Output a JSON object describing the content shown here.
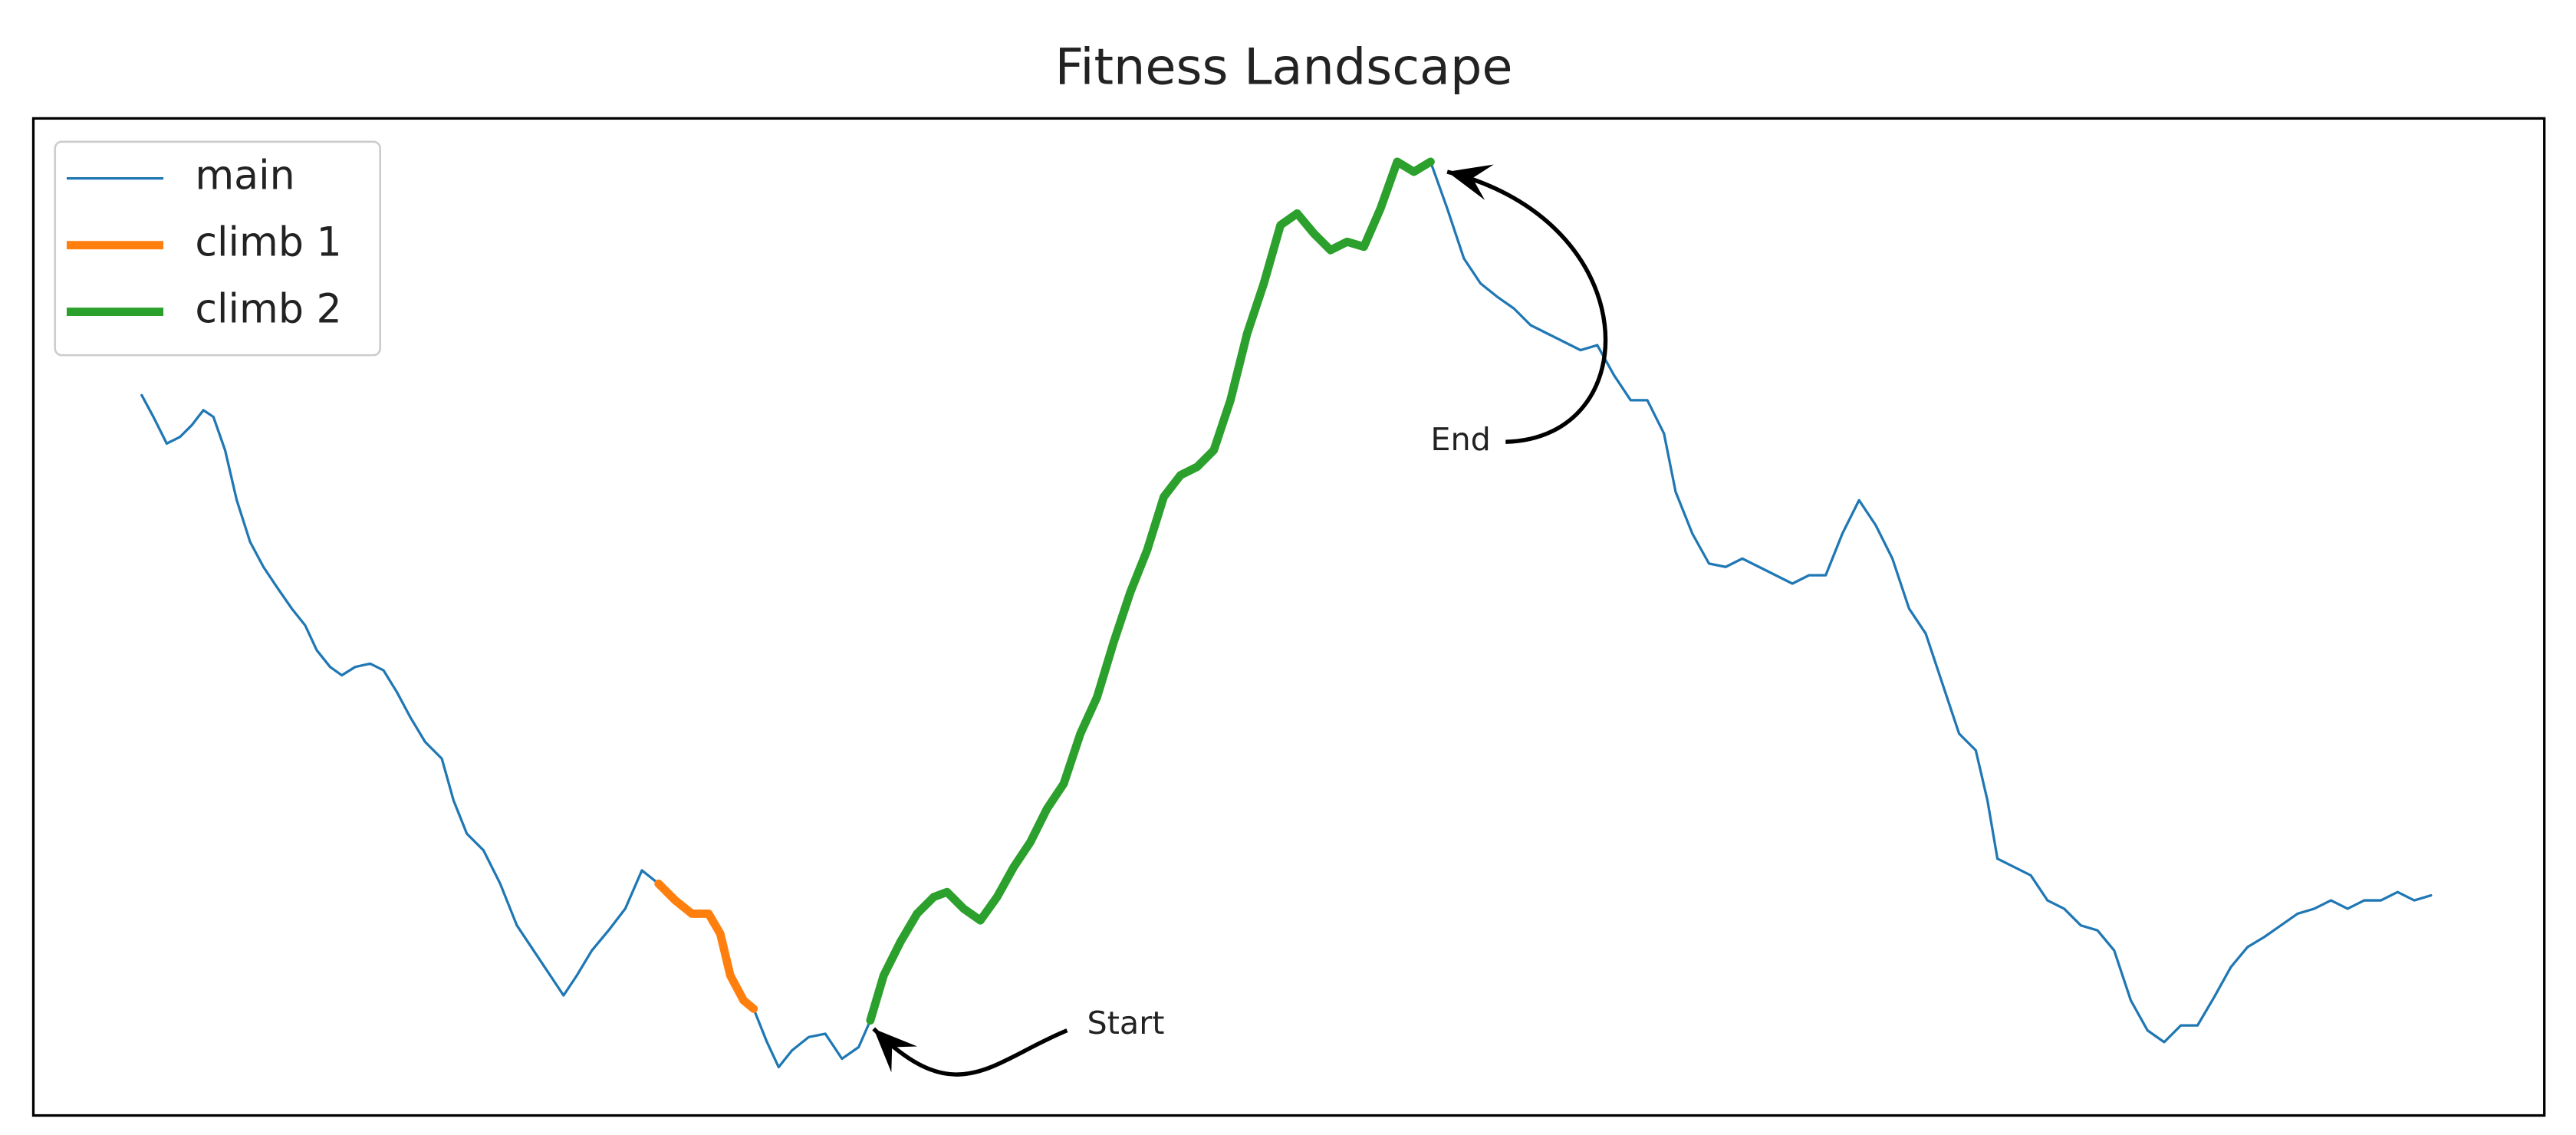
{
  "chart_data": {
    "type": "line",
    "title": "Fitness Landscape",
    "xlim": [
      0,
      1506
    ],
    "ylim": [
      0,
      598
    ],
    "legend": "upper left",
    "series": [
      {
        "name": "main",
        "color": "#1f77b4",
        "x": [
          65,
          72,
          80,
          88,
          95,
          102,
          108,
          115,
          122,
          130,
          138,
          146,
          155,
          163,
          170,
          178,
          185,
          193,
          202,
          210,
          218,
          226,
          235,
          245,
          252,
          260,
          270,
          280,
          290,
          300,
          310,
          318,
          326,
          335,
          345,
          355,
          365,
          375,
          385,
          395,
          405,
          412,
          418,
          426,
          432,
          440,
          447,
          455,
          465,
          475,
          485,
          495,
          502,
          510,
          520,
          530,
          540,
          548,
          558,
          568,
          578,
          588,
          598,
          608,
          618,
          628,
          638,
          648,
          658,
          668,
          678,
          688,
          698,
          708,
          718,
          728,
          738,
          748,
          758,
          768,
          778,
          788,
          798,
          808,
          818,
          828,
          838,
          848,
          858,
          868,
          878,
          888,
          898,
          908,
          918,
          928,
          938,
          948,
          958,
          968,
          978,
          985,
          995,
          1005,
          1015,
          1025,
          1035,
          1045,
          1055,
          1065,
          1075,
          1085,
          1095,
          1105,
          1115,
          1125,
          1135,
          1145,
          1155,
          1165,
          1172,
          1178,
          1188,
          1198,
          1208,
          1218,
          1228,
          1238,
          1248,
          1258,
          1268,
          1278,
          1288,
          1298,
          1308,
          1318,
          1328,
          1338,
          1348,
          1358,
          1368,
          1378,
          1388,
          1398,
          1408,
          1418,
          1428,
          1438
        ],
        "values": [
          432,
          419,
          403,
          407,
          414,
          423,
          419,
          399,
          369,
          344,
          329,
          317,
          304,
          294,
          279,
          269,
          264,
          269,
          271,
          267,
          254,
          239,
          224,
          214,
          189,
          169,
          159,
          139,
          114,
          99,
          84,
          72,
          84,
          99,
          111,
          124,
          147,
          139,
          129,
          121,
          121,
          109,
          84,
          69,
          64,
          44,
          29,
          39,
          47,
          49,
          34,
          41,
          57,
          84,
          104,
          121,
          131,
          134,
          124,
          117,
          131,
          149,
          164,
          184,
          199,
          229,
          251,
          284,
          314,
          339,
          371,
          384,
          389,
          399,
          429,
          469,
          499,
          534,
          541,
          529,
          519,
          524,
          521,
          544,
          572,
          566,
          572,
          544,
          514,
          499,
          491,
          484,
          474,
          469,
          464,
          459,
          462,
          444,
          429,
          429,
          409,
          374,
          349,
          331,
          329,
          334,
          329,
          324,
          319,
          324,
          324,
          349,
          369,
          354,
          334,
          304,
          289,
          259,
          229,
          219,
          189,
          154,
          149,
          144,
          129,
          124,
          114,
          111,
          99,
          69,
          51,
          44,
          54,
          54,
          71,
          89,
          101,
          107,
          114,
          121,
          124,
          129,
          124,
          129,
          129,
          134,
          129,
          132
        ]
      },
      {
        "name": "climb 1",
        "color": "#ff7f0e",
        "x": [
          375,
          385,
          395,
          405,
          412,
          418,
          426,
          432
        ],
        "values": [
          139,
          129,
          121,
          121,
          109,
          84,
          69,
          64
        ]
      },
      {
        "name": "climb 2",
        "color": "#2ca02c",
        "x": [
          502,
          510,
          520,
          530,
          540,
          548,
          558,
          568,
          578,
          588,
          598,
          608,
          618,
          628,
          638,
          648,
          658,
          668,
          678,
          688,
          698,
          708,
          718,
          728,
          738,
          748,
          758,
          768,
          778,
          788,
          798,
          808,
          818,
          828,
          838
        ],
        "values": [
          57,
          84,
          104,
          121,
          131,
          134,
          124,
          117,
          131,
          149,
          164,
          184,
          199,
          229,
          251,
          284,
          314,
          339,
          371,
          384,
          389,
          399,
          429,
          469,
          499,
          534,
          541,
          529,
          519,
          524,
          521,
          544,
          572,
          566,
          572
        ]
      }
    ],
    "annotations": [
      {
        "text": "Start"
      },
      {
        "text": "End"
      }
    ]
  }
}
